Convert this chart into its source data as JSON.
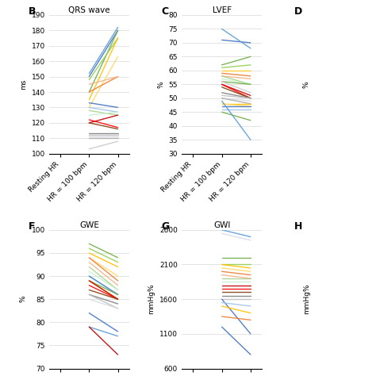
{
  "panels": {
    "B": {
      "title": "QRS wave",
      "ylabel": "ms",
      "ylim": [
        100,
        190
      ],
      "yticks": [
        100,
        110,
        120,
        130,
        140,
        150,
        160,
        170,
        180,
        190
      ],
      "label": "B",
      "lines": [
        [
          null,
          150,
          180
        ],
        [
          null,
          152,
          182
        ],
        [
          null,
          140,
          180
        ],
        [
          null,
          148,
          175
        ],
        [
          null,
          135,
          175
        ],
        [
          null,
          130,
          163
        ],
        [
          null,
          140,
          150
        ],
        [
          null,
          145,
          150
        ],
        [
          null,
          133,
          130
        ],
        [
          null,
          130,
          127
        ],
        [
          null,
          128,
          125
        ],
        [
          null,
          125,
          127
        ],
        [
          null,
          120,
          125
        ],
        [
          null,
          122,
          117
        ],
        [
          null,
          120,
          116
        ],
        [
          null,
          113,
          113
        ],
        [
          null,
          112,
          112
        ],
        [
          null,
          111,
          111
        ],
        [
          null,
          110,
          110
        ],
        [
          null,
          103,
          108
        ]
      ],
      "colors": [
        "#4472c4",
        "#5b9bd5",
        "#70ad47",
        "#92d050",
        "#ffc000",
        "#ffd966",
        "#ed7d31",
        "#f4b183",
        "#4472c4",
        "#9dc3e6",
        "#a9d18e",
        "#c6efce",
        "#c00000",
        "#ff0000",
        "#843c0c",
        "#808080",
        "#bfbfbf",
        "#d6dce4",
        "#aeabab",
        "#c9c9c9"
      ]
    },
    "C": {
      "title": "LVEF",
      "ylabel": "%",
      "ylim": [
        30,
        80
      ],
      "yticks": [
        30,
        35,
        40,
        45,
        50,
        55,
        60,
        65,
        70,
        75,
        80
      ],
      "label": "C",
      "lines": [
        [
          null,
          71,
          70
        ],
        [
          null,
          75,
          68
        ],
        [
          null,
          62,
          65
        ],
        [
          null,
          61,
          62
        ],
        [
          null,
          60,
          60
        ],
        [
          null,
          60,
          60
        ],
        [
          null,
          59,
          58
        ],
        [
          null,
          58,
          57
        ],
        [
          null,
          58,
          55
        ],
        [
          null,
          57,
          55
        ],
        [
          null,
          56,
          55
        ],
        [
          null,
          56,
          52
        ],
        [
          null,
          55,
          51
        ],
        [
          null,
          55,
          50
        ],
        [
          null,
          54,
          50
        ],
        [
          null,
          52,
          50
        ],
        [
          null,
          51,
          50
        ],
        [
          null,
          50,
          49
        ],
        [
          null,
          50,
          48
        ],
        [
          null,
          48,
          48
        ],
        [
          null,
          48,
          47
        ],
        [
          null,
          47,
          47
        ],
        [
          null,
          46,
          46
        ],
        [
          null,
          45,
          42
        ],
        [
          null,
          49,
          35
        ]
      ],
      "colors": [
        "#4472c4",
        "#5b9bd5",
        "#70ad47",
        "#92d050",
        "#ffc000",
        "#ffd966",
        "#ed7d31",
        "#f4b183",
        "#a9d18e",
        "#c6efce",
        "#70ad47",
        "#c9c9c9",
        "#c00000",
        "#ff0000",
        "#843c0c",
        "#808080",
        "#bfbfbf",
        "#d6dce4",
        "#aeabab",
        "#ffc000",
        "#ffd966",
        "#4472c4",
        "#9dc3e6",
        "#70ad47",
        "#5b9bd5"
      ]
    },
    "F": {
      "title": "GWE",
      "ylabel": "%",
      "ylim": [
        70,
        100
      ],
      "yticks": [
        70,
        75,
        80,
        85,
        90,
        95,
        100
      ],
      "label": "F",
      "lines": [
        [
          null,
          97,
          94
        ],
        [
          null,
          96,
          93
        ],
        [
          null,
          95,
          92
        ],
        [
          null,
          94,
          90
        ],
        [
          null,
          94,
          89
        ],
        [
          null,
          93,
          88
        ],
        [
          null,
          92,
          87
        ],
        [
          null,
          91,
          87
        ],
        [
          null,
          90,
          86
        ],
        [
          null,
          90,
          86
        ],
        [
          null,
          89,
          86
        ],
        [
          null,
          89,
          85
        ],
        [
          null,
          89,
          85
        ],
        [
          null,
          88,
          85
        ],
        [
          null,
          87,
          85
        ],
        [
          null,
          86,
          84
        ],
        [
          null,
          86,
          83
        ],
        [
          null,
          85,
          83
        ],
        [
          null,
          82,
          78
        ],
        [
          null,
          79,
          77
        ],
        [
          null,
          79,
          73
        ]
      ],
      "colors": [
        "#70ad47",
        "#92d050",
        "#ffc000",
        "#ffd966",
        "#ed7d31",
        "#f4b183",
        "#a9d18e",
        "#c6efce",
        "#4472c4",
        "#5b9bd5",
        "#70ad47",
        "#ffc000",
        "#c00000",
        "#ff0000",
        "#843c0c",
        "#808080",
        "#bfbfbf",
        "#d6dce4",
        "#4472c4",
        "#5b9bd5",
        "#c00000"
      ]
    },
    "G": {
      "title": "GWI",
      "ylabel": "mmHg%",
      "ylim": [
        600,
        2600
      ],
      "yticks": [
        600,
        1100,
        1600,
        2100,
        2600
      ],
      "label": "G",
      "lines": [
        [
          null,
          2600,
          2500
        ],
        [
          null,
          2550,
          2450
        ],
        [
          null,
          2200,
          2200
        ],
        [
          null,
          2100,
          2100
        ],
        [
          null,
          2100,
          2050
        ],
        [
          null,
          2050,
          2000
        ],
        [
          null,
          2000,
          1950
        ],
        [
          null,
          1950,
          1900
        ],
        [
          null,
          1900,
          1900
        ],
        [
          null,
          1850,
          1850
        ],
        [
          null,
          1800,
          1800
        ],
        [
          null,
          1750,
          1750
        ],
        [
          null,
          1700,
          1700
        ],
        [
          null,
          1650,
          1650
        ],
        [
          null,
          1600,
          1600
        ],
        [
          null,
          1600,
          1100
        ],
        [
          null,
          1550,
          1500
        ],
        [
          null,
          1500,
          1400
        ],
        [
          null,
          1350,
          1300
        ],
        [
          null,
          1200,
          800
        ]
      ],
      "colors": [
        "#5b9bd5",
        "#d6dce4",
        "#70ad47",
        "#92d050",
        "#ffc000",
        "#ffd966",
        "#ed7d31",
        "#f4b183",
        "#a9d18e",
        "#c6efce",
        "#c00000",
        "#ff0000",
        "#843c0c",
        "#808080",
        "#bfbfbf",
        "#4472c4",
        "#9dc3e6",
        "#ffc000",
        "#ed7d31",
        "#4472c4"
      ]
    },
    "D_partial": {
      "label": "D",
      "ylabel": "%"
    },
    "H_partial": {
      "label": "H",
      "ylabel": "mmHg%"
    }
  },
  "xtick_labels": [
    "Resting HR",
    "HR = 100 bpm",
    "HR = 120 bpm"
  ],
  "bg_color": "#ffffff",
  "line_width": 1.0,
  "font_size": 6.5,
  "title_font_size": 7.5,
  "label_font_size": 9
}
